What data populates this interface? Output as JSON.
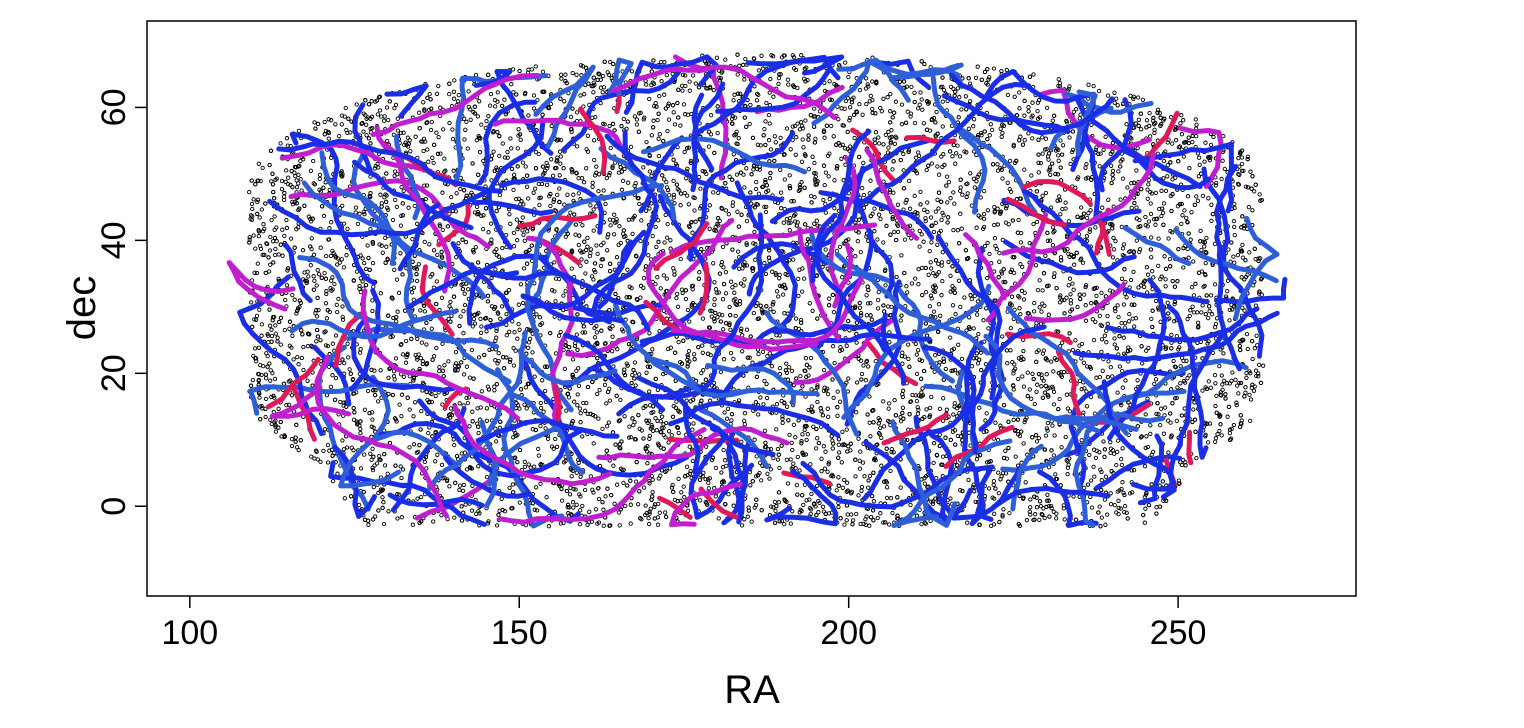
{
  "chart_data": {
    "type": "scatter",
    "title": "",
    "xlabel": "RA",
    "ylabel": "dec",
    "xlim": [
      93.5,
      277
    ],
    "ylim": [
      -13.5,
      73
    ],
    "xticks": [
      100,
      150,
      200,
      250
    ],
    "yticks": [
      0,
      20,
      40,
      60
    ],
    "grid": false,
    "legend": "none",
    "colors": {
      "points": "#000000",
      "filament_strong": "#1a2ee6",
      "filament_mid": "#2f5fd8",
      "filament_weak": "#c01fd0",
      "filament_faint": "#e0195a"
    },
    "point_cloud": {
      "ra_range": [
        109,
        263
      ],
      "dec_range": [
        -3,
        68
      ],
      "approx_count": 9000,
      "marker": "open-circle"
    },
    "filaments_description": "network of curved filament segments, colored blue (strong) through purple to red (faint)"
  }
}
